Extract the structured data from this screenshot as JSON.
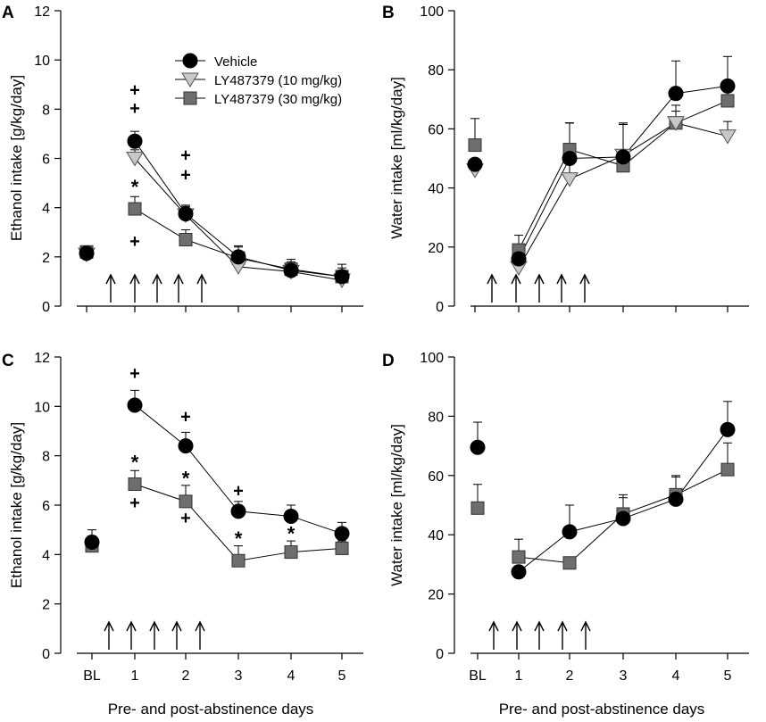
{
  "figure": {
    "xlabel": "Pre- and post-abstinence days",
    "categories": [
      "BL",
      "1",
      "2",
      "3",
      "4",
      "5"
    ],
    "colors": {
      "axis": "#000000",
      "vehicle": "#000000",
      "ly10": "#c8c8c8",
      "ly30": "#6e6e6e"
    }
  },
  "chart_data": [
    {
      "type": "line",
      "panel": "A",
      "ylabel": "Ethanol intake [g/kg/day]",
      "ylim": [
        0,
        12
      ],
      "yticks": [
        0,
        2,
        4,
        6,
        8,
        10,
        12
      ],
      "yticklabels": [
        "0",
        "2",
        "4",
        "6",
        "8",
        "10",
        "12"
      ],
      "categories": [
        "BL",
        "1",
        "2",
        "3",
        "4",
        "5"
      ],
      "legend": {
        "position": "top-right",
        "entries": [
          "Vehicle",
          "LY487379 (10 mg/kg)",
          "LY487379 (30 mg/kg)"
        ]
      },
      "arrows": [
        0.5,
        1,
        1.5,
        2,
        2.5
      ],
      "series": [
        {
          "name": "Vehicle",
          "marker": "circle",
          "color": "#000000",
          "x": [
            0,
            1,
            2,
            3,
            4,
            5
          ],
          "values": [
            2.15,
            6.7,
            3.75,
            2.0,
            1.45,
            1.2
          ],
          "errors": [
            0.2,
            0.4,
            0.35,
            0.45,
            0.35,
            0.5
          ],
          "connect_from": 1,
          "annotations": [
            {
              "x": 1,
              "text": "+",
              "dy": 1.35
            },
            {
              "x": 1,
              "text": "+",
              "dy": 2.1
            },
            {
              "x": 2,
              "text": "+",
              "dy": 1.6
            },
            {
              "x": 2,
              "text": "+",
              "dy": 2.4
            }
          ]
        },
        {
          "name": "LY487379 (10 mg/kg)",
          "marker": "triangle",
          "color": "#c8c8c8",
          "x": [
            0,
            1,
            2,
            3,
            4,
            5
          ],
          "values": [
            2.1,
            6.0,
            3.7,
            1.6,
            1.4,
            1.05
          ],
          "errors": [
            0.2,
            0.35,
            0.35,
            0.35,
            0.3,
            0.3
          ],
          "connect_from": 1,
          "annotations": []
        },
        {
          "name": "LY487379 (30 mg/kg)",
          "marker": "square",
          "color": "#6e6e6e",
          "x": [
            0,
            1,
            2,
            3,
            4,
            5
          ],
          "values": [
            2.2,
            3.95,
            2.7,
            1.95,
            1.5,
            1.2
          ],
          "errors": [
            0.25,
            0.5,
            0.4,
            0.45,
            0.4,
            0.35
          ],
          "connect_from": 1,
          "annotations": [
            {
              "x": 1,
              "text": "*",
              "dy": 1.05
            },
            {
              "x": 1,
              "text": "+",
              "dy": -1.3
            }
          ]
        }
      ]
    },
    {
      "type": "line",
      "panel": "B",
      "ylabel": "Water intake [ml/kg/day]",
      "ylim": [
        0,
        100
      ],
      "yticks": [
        0,
        20,
        40,
        60,
        80,
        100
      ],
      "yticklabels": [
        "0",
        "20",
        "40",
        "60",
        "80",
        "100"
      ],
      "categories": [
        "BL",
        "1",
        "2",
        "3",
        "4",
        "5"
      ],
      "arrows": [
        0.5,
        1,
        1.5,
        2,
        2.5
      ],
      "series": [
        {
          "name": "Vehicle",
          "marker": "circle",
          "color": "#000000",
          "x": [
            0,
            1,
            2,
            3,
            4,
            5
          ],
          "values": [
            48,
            16,
            50,
            50.5,
            72,
            74.5
          ],
          "errors": [
            0,
            5,
            12,
            11,
            11,
            10
          ],
          "connect_from": 1,
          "annotations": []
        },
        {
          "name": "LY487379 (10 mg/kg)",
          "marker": "triangle",
          "color": "#c8c8c8",
          "x": [
            0,
            1,
            2,
            3,
            4,
            5
          ],
          "values": [
            46,
            13,
            43,
            51,
            62,
            57.5
          ],
          "errors": [
            0,
            3,
            19,
            11,
            4,
            5
          ],
          "connect_from": 1,
          "annotations": []
        },
        {
          "name": "LY487379 (30 mg/kg)",
          "marker": "square",
          "color": "#6e6e6e",
          "x": [
            0,
            1,
            2,
            3,
            4,
            5
          ],
          "values": [
            54.5,
            19,
            53,
            47.5,
            62,
            69.5
          ],
          "errors": [
            9,
            5,
            9,
            14,
            6,
            5
          ],
          "connect_from": 1,
          "annotations": []
        }
      ]
    },
    {
      "type": "line",
      "panel": "C",
      "ylabel": "Ethanol intake [g/kg/day]",
      "ylim": [
        0,
        12
      ],
      "yticks": [
        0,
        2,
        4,
        6,
        8,
        10,
        12
      ],
      "yticklabels": [
        "0",
        "2",
        "4",
        "6",
        "8",
        "10",
        "12"
      ],
      "categories": [
        "BL",
        "1",
        "2",
        "3",
        "4",
        "5"
      ],
      "arrows": [
        0.5,
        1,
        1.5,
        2,
        2.5
      ],
      "series": [
        {
          "name": "Vehicle",
          "marker": "circle",
          "color": "#000000",
          "x": [
            0,
            1,
            2,
            3,
            4,
            5
          ],
          "values": [
            4.5,
            10.05,
            8.4,
            5.75,
            5.55,
            4.85
          ],
          "errors": [
            0.5,
            0.6,
            0.55,
            0.4,
            0.45,
            0.45
          ],
          "connect_from": 1,
          "annotations": [
            {
              "x": 1,
              "text": "+",
              "dy": 1.3
            },
            {
              "x": 2,
              "text": "+",
              "dy": 1.2
            },
            {
              "x": 3,
              "text": "+",
              "dy": 0.85
            }
          ]
        },
        {
          "name": "LY487379 (30 mg/kg)",
          "marker": "square",
          "color": "#6e6e6e",
          "x": [
            0,
            1,
            2,
            3,
            4,
            5
          ],
          "values": [
            4.35,
            6.85,
            6.15,
            3.75,
            4.1,
            4.25
          ],
          "errors": [
            0.4,
            0.55,
            0.65,
            0.6,
            0.45,
            0.3
          ],
          "connect_from": 1,
          "annotations": [
            {
              "x": 1,
              "text": "*",
              "dy": 1.05
            },
            {
              "x": 1,
              "text": "+",
              "dy": -0.75
            },
            {
              "x": 2,
              "text": "*",
              "dy": 1.1
            },
            {
              "x": 2,
              "text": "+",
              "dy": -0.65
            },
            {
              "x": 3,
              "text": "*",
              "dy": 1.05
            },
            {
              "x": 4,
              "text": "*",
              "dy": 0.9
            }
          ]
        }
      ]
    },
    {
      "type": "line",
      "panel": "D",
      "ylabel": "Water intake [ml/kg/day]",
      "ylim": [
        0,
        100
      ],
      "yticks": [
        0,
        20,
        40,
        60,
        80,
        100
      ],
      "yticklabels": [
        "0",
        "20",
        "40",
        "60",
        "80",
        "100"
      ],
      "categories": [
        "BL",
        "1",
        "2",
        "3",
        "4",
        "5"
      ],
      "arrows": [
        0.5,
        1,
        1.5,
        2,
        2.5
      ],
      "series": [
        {
          "name": "Vehicle",
          "marker": "circle",
          "color": "#000000",
          "x": [
            0,
            1,
            2,
            3,
            4,
            5
          ],
          "values": [
            69.5,
            27.5,
            41,
            45.5,
            52,
            75.5
          ],
          "errors": [
            8.5,
            0,
            9,
            7,
            8,
            9.5
          ],
          "connect_from": 1,
          "annotations": []
        },
        {
          "name": "LY487379 (30 mg/kg)",
          "marker": "square",
          "color": "#6e6e6e",
          "x": [
            0,
            1,
            2,
            3,
            4,
            5
          ],
          "values": [
            49,
            32.5,
            30.5,
            47,
            53.5,
            62
          ],
          "errors": [
            8,
            6,
            0,
            6.5,
            6,
            9
          ],
          "connect_from": 1,
          "annotations": []
        }
      ]
    }
  ]
}
